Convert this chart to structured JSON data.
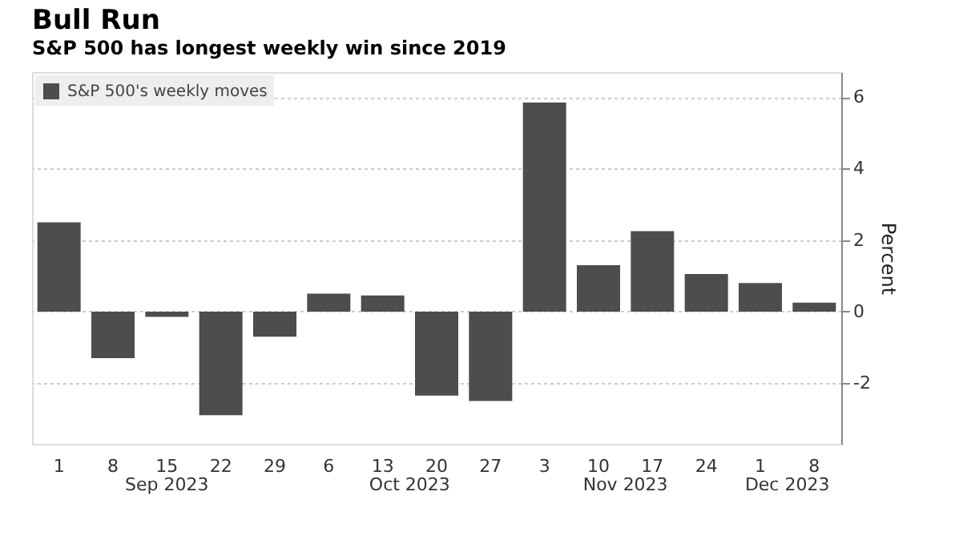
{
  "chart_data": {
    "type": "bar",
    "title": "Bull Run",
    "subtitle": "S&P 500 has longest weekly win since 2019",
    "ylabel": "Percent",
    "categories": [
      "1",
      "8",
      "15",
      "22",
      "29",
      "6",
      "13",
      "20",
      "27",
      "3",
      "10",
      "17",
      "24",
      "1",
      "8"
    ],
    "series": [
      {
        "name": "S&P 500's weekly moves",
        "color": "#4d4d4d",
        "values": [
          2.5,
          -1.3,
          -0.15,
          -2.9,
          -0.7,
          0.5,
          0.45,
          -2.35,
          -2.5,
          5.85,
          1.3,
          2.25,
          1.05,
          0.8,
          0.25
        ]
      }
    ],
    "ylim": [
      -3.7,
      6.7
    ],
    "yticks": [
      -2,
      0,
      2,
      4,
      6
    ],
    "grid": "y",
    "legend": "top left",
    "annotations": [
      "Sep 2023",
      "Oct 2023",
      "Nov 2023",
      "Dec 2023"
    ]
  }
}
